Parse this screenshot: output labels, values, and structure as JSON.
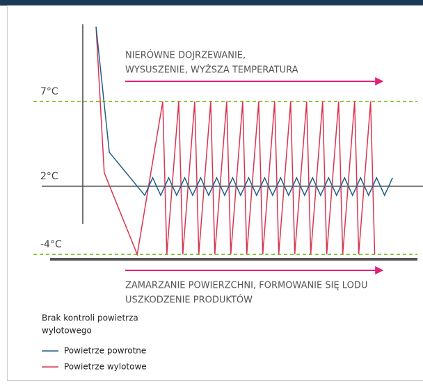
{
  "chart_data": {
    "type": "line",
    "yticks": [
      {
        "value": 7,
        "label": "7°C"
      },
      {
        "value": 2,
        "label": "2°C"
      },
      {
        "value": -4,
        "label": "-4°C"
      }
    ],
    "ylim": [
      -4.5,
      11.5
    ],
    "xlim": [
      0,
      100
    ],
    "annotations": [
      {
        "lines": [
          "NIERÓWNE DOJRZEWANIE,",
          "WYSUSZENIE, WYŻSZA TEMPERATURA"
        ],
        "color": "#e0217a"
      },
      {
        "lines": [
          "ZAMARZANIE POWIERZCHNI, FORMOWANIE SIĘ LODU",
          "USZKODZENIE PRODUKTÓW"
        ],
        "color": "#e0217a"
      }
    ],
    "legend_title": [
      "Brak kontroli powietrza",
      "wylotowego"
    ],
    "series": [
      {
        "name": "Powietrze powrotne",
        "color": "#1f5f8b",
        "x": [
          3.9,
          7.8,
          18.2,
          20.55,
          22.9,
          25.25,
          27.6,
          29.95,
          32.3,
          34.65,
          37.0,
          39.35,
          41.7,
          44.05,
          46.4,
          48.75,
          51.1,
          53.45,
          55.8,
          58.15,
          60.5,
          62.85,
          65.2,
          67.55,
          69.9,
          72.25,
          74.6,
          76.95,
          79.3,
          81.65,
          84.0,
          86.35,
          88.7,
          91.05
        ],
        "values": [
          11.4,
          4.0,
          1.2,
          2.5,
          1.2,
          2.5,
          1.2,
          2.5,
          1.2,
          2.5,
          1.2,
          2.5,
          1.2,
          2.5,
          1.2,
          2.5,
          1.2,
          2.5,
          1.2,
          2.5,
          1.2,
          2.5,
          1.2,
          2.5,
          1.2,
          2.5,
          1.2,
          2.5,
          1.2,
          2.5,
          1.2,
          2.5,
          1.2,
          2.5
        ]
      },
      {
        "name": "Powietrze wylotowe",
        "color": "#d9344f",
        "x": [
          3.9,
          6.3,
          16.0,
          23.5,
          24.7,
          28.2,
          29.4,
          32.9,
          34.1,
          37.6,
          38.8,
          42.3,
          43.5,
          47.0,
          48.2,
          51.7,
          52.9,
          56.4,
          57.6,
          61.1,
          62.3,
          65.8,
          67.0,
          70.5,
          71.7,
          75.2,
          76.4,
          79.9,
          81.1,
          84.6,
          85.8
        ],
        "values": [
          11.4,
          2.8,
          -4,
          7,
          -4,
          7,
          -4,
          7,
          -4,
          7,
          -4,
          7,
          -4,
          7,
          -4,
          7,
          -4,
          7,
          -4,
          7,
          -4,
          7,
          -4,
          7,
          -4,
          7,
          -4,
          7,
          -4,
          7,
          -4
        ]
      }
    ]
  }
}
